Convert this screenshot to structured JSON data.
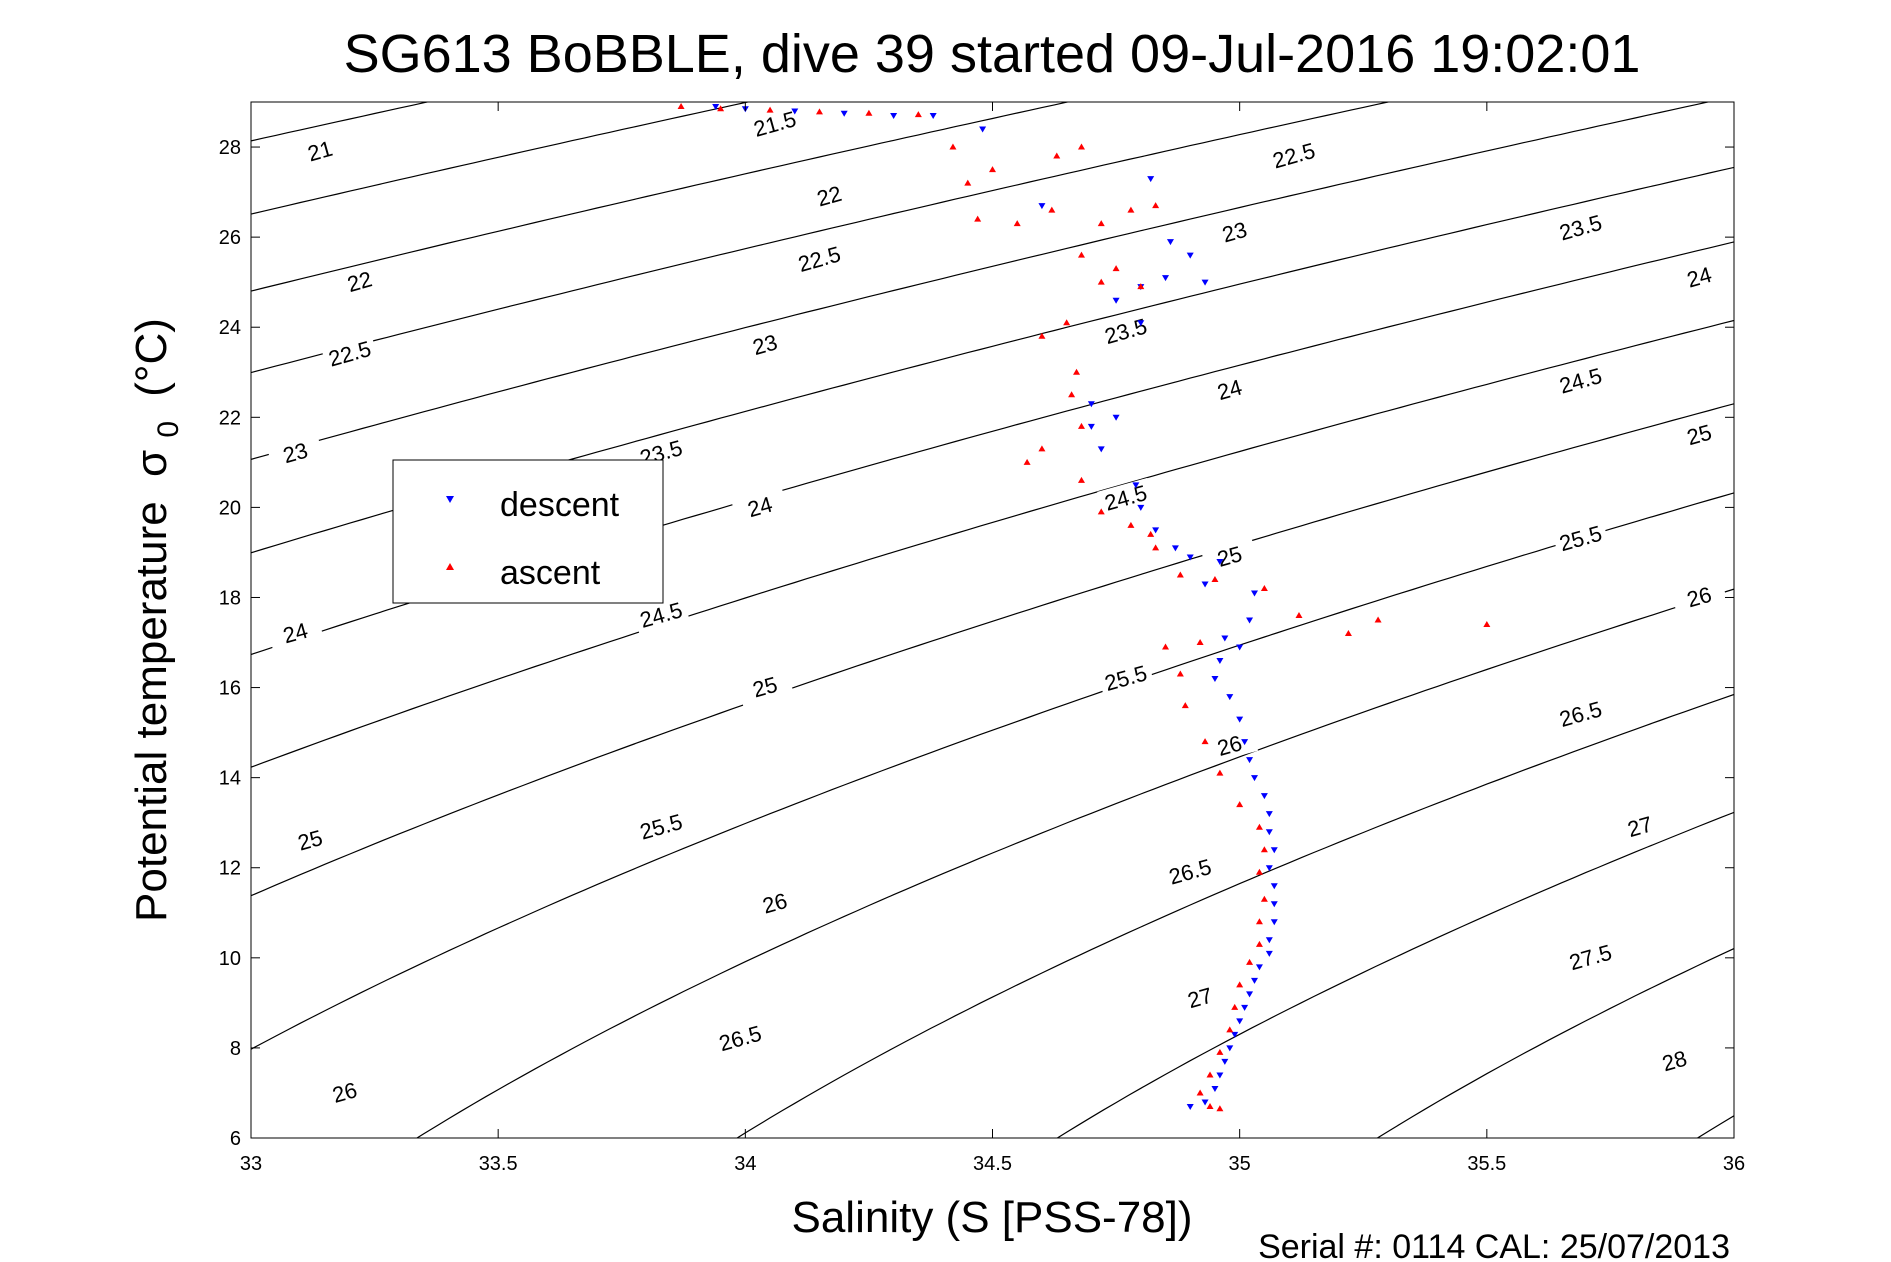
{
  "chart_data": {
    "type": "scatter",
    "title": "SG613 BoBBLE, dive 39 started 09-Jul-2016 19:02:01",
    "xlabel": "Salinity (S [PSS-78])",
    "ylabel": "Potential temperature",
    "ylabel_symbol": "σ",
    "ylabel_subscript": "0",
    "ylabel_unit": "(°C)",
    "xlim": [
      33,
      36
    ],
    "ylim": [
      6,
      29
    ],
    "xticks": [
      "33",
      "33.5",
      "34",
      "34.5",
      "35",
      "35.5",
      "36"
    ],
    "yticks": [
      "6",
      "8",
      "10",
      "12",
      "14",
      "16",
      "18",
      "20",
      "22",
      "24",
      "26",
      "28"
    ],
    "grid": false,
    "legend_position": "center-left",
    "footer": "Serial #: 0114  CAL: 25/07/2013",
    "density_contours": {
      "levels": [
        21,
        21.5,
        22,
        22.5,
        23,
        23.5,
        24,
        24.5,
        25,
        25.5,
        26,
        26.5,
        27,
        27.5,
        28
      ],
      "color": "#000000",
      "labels": [
        {
          "text": "21",
          "s": 33.14,
          "t": 27.9
        },
        {
          "text": "21.5",
          "s": 34.06,
          "t": 28.5
        },
        {
          "text": "22",
          "s": 34.17,
          "t": 26.9
        },
        {
          "text": "22.5",
          "s": 35.11,
          "t": 27.8
        },
        {
          "text": "22",
          "s": 33.22,
          "t": 25.0
        },
        {
          "text": "22.5",
          "s": 34.15,
          "t": 25.5
        },
        {
          "text": "23",
          "s": 34.99,
          "t": 26.1
        },
        {
          "text": "23.5",
          "s": 35.69,
          "t": 26.2
        },
        {
          "text": "24",
          "s": 35.93,
          "t": 25.1
        },
        {
          "text": "22.5",
          "s": 33.2,
          "t": 23.4
        },
        {
          "text": "23",
          "s": 34.04,
          "t": 23.6
        },
        {
          "text": "23.5",
          "s": 34.77,
          "t": 23.9
        },
        {
          "text": "24",
          "s": 34.98,
          "t": 22.6
        },
        {
          "text": "24.5",
          "s": 35.69,
          "t": 22.8
        },
        {
          "text": "25",
          "s": 35.93,
          "t": 21.6
        },
        {
          "text": "23",
          "s": 33.09,
          "t": 21.2
        },
        {
          "text": "23.5",
          "s": 33.83,
          "t": 21.2
        },
        {
          "text": "24",
          "s": 34.03,
          "t": 20.0
        },
        {
          "text": "24.5",
          "s": 34.77,
          "t": 20.2
        },
        {
          "text": "25",
          "s": 34.98,
          "t": 18.9
        },
        {
          "text": "25.5",
          "s": 35.69,
          "t": 19.3
        },
        {
          "text": "26",
          "s": 35.93,
          "t": 18.0
        },
        {
          "text": "24",
          "s": 33.09,
          "t": 17.2
        },
        {
          "text": "24.5",
          "s": 33.83,
          "t": 17.6
        },
        {
          "text": "25",
          "s": 34.04,
          "t": 16.0
        },
        {
          "text": "25.5",
          "s": 34.77,
          "t": 16.2
        },
        {
          "text": "26",
          "s": 34.98,
          "t": 14.7
        },
        {
          "text": "26.5",
          "s": 35.69,
          "t": 15.4
        },
        {
          "text": "25",
          "s": 33.12,
          "t": 12.6
        },
        {
          "text": "25.5",
          "s": 33.83,
          "t": 12.9
        },
        {
          "text": "26",
          "s": 34.06,
          "t": 11.2
        },
        {
          "text": "26.5",
          "s": 34.9,
          "t": 11.9
        },
        {
          "text": "27",
          "s": 35.81,
          "t": 12.9
        },
        {
          "text": "27",
          "s": 34.92,
          "t": 9.1
        },
        {
          "text": "27.5",
          "s": 35.71,
          "t": 10.0
        },
        {
          "text": "26",
          "s": 33.19,
          "t": 7.0
        },
        {
          "text": "26.5",
          "s": 33.99,
          "t": 8.2
        },
        {
          "text": "28",
          "s": 35.88,
          "t": 7.7
        }
      ]
    },
    "series": [
      {
        "name": "descent",
        "color": "#0000ff",
        "marker": "triangle-down",
        "points": [
          [
            33.94,
            28.9
          ],
          [
            34.0,
            28.85
          ],
          [
            34.1,
            28.8
          ],
          [
            34.2,
            28.75
          ],
          [
            34.3,
            28.7
          ],
          [
            34.38,
            28.7
          ],
          [
            34.48,
            28.4
          ],
          [
            34.82,
            27.3
          ],
          [
            34.6,
            26.7
          ],
          [
            34.86,
            25.9
          ],
          [
            34.9,
            25.6
          ],
          [
            34.85,
            25.1
          ],
          [
            34.8,
            24.9
          ],
          [
            34.93,
            25.0
          ],
          [
            34.75,
            24.6
          ],
          [
            34.8,
            24.1
          ],
          [
            34.7,
            22.3
          ],
          [
            34.75,
            22.0
          ],
          [
            34.7,
            21.8
          ],
          [
            34.72,
            21.3
          ],
          [
            34.79,
            20.5
          ],
          [
            34.8,
            20.0
          ],
          [
            34.83,
            19.5
          ],
          [
            34.87,
            19.1
          ],
          [
            34.9,
            18.9
          ],
          [
            34.96,
            18.8
          ],
          [
            34.93,
            18.3
          ],
          [
            35.03,
            18.1
          ],
          [
            35.02,
            17.5
          ],
          [
            34.97,
            17.1
          ],
          [
            35.0,
            16.9
          ],
          [
            34.96,
            16.6
          ],
          [
            34.95,
            16.2
          ],
          [
            34.98,
            15.8
          ],
          [
            35.0,
            15.3
          ],
          [
            35.01,
            14.8
          ],
          [
            35.02,
            14.4
          ],
          [
            35.03,
            14.0
          ],
          [
            35.05,
            13.6
          ],
          [
            35.06,
            13.2
          ],
          [
            35.06,
            12.8
          ],
          [
            35.07,
            12.4
          ],
          [
            35.06,
            12.0
          ],
          [
            35.07,
            11.6
          ],
          [
            35.07,
            11.2
          ],
          [
            35.07,
            10.8
          ],
          [
            35.06,
            10.4
          ],
          [
            35.06,
            10.1
          ],
          [
            35.04,
            9.8
          ],
          [
            35.03,
            9.5
          ],
          [
            35.02,
            9.2
          ],
          [
            35.01,
            8.9
          ],
          [
            35.0,
            8.6
          ],
          [
            34.99,
            8.3
          ],
          [
            34.98,
            8.0
          ],
          [
            34.97,
            7.7
          ],
          [
            34.96,
            7.4
          ],
          [
            34.95,
            7.1
          ],
          [
            34.93,
            6.8
          ],
          [
            34.9,
            6.7
          ]
        ]
      },
      {
        "name": "ascent",
        "color": "#ff0000",
        "marker": "triangle-up",
        "points": [
          [
            33.87,
            28.9
          ],
          [
            33.95,
            28.85
          ],
          [
            34.05,
            28.82
          ],
          [
            34.15,
            28.78
          ],
          [
            34.25,
            28.75
          ],
          [
            34.35,
            28.72
          ],
          [
            34.42,
            28.0
          ],
          [
            34.5,
            27.5
          ],
          [
            34.63,
            27.8
          ],
          [
            34.68,
            28.0
          ],
          [
            34.45,
            27.2
          ],
          [
            34.47,
            26.4
          ],
          [
            34.55,
            26.3
          ],
          [
            34.62,
            26.6
          ],
          [
            34.72,
            26.3
          ],
          [
            34.78,
            26.6
          ],
          [
            34.83,
            26.7
          ],
          [
            34.68,
            25.6
          ],
          [
            34.75,
            25.3
          ],
          [
            34.72,
            25.0
          ],
          [
            34.8,
            24.9
          ],
          [
            34.65,
            24.1
          ],
          [
            34.6,
            23.8
          ],
          [
            34.67,
            23.0
          ],
          [
            34.66,
            22.5
          ],
          [
            34.68,
            21.8
          ],
          [
            34.6,
            21.3
          ],
          [
            34.57,
            21.0
          ],
          [
            34.68,
            20.6
          ],
          [
            34.72,
            19.9
          ],
          [
            34.78,
            19.6
          ],
          [
            34.82,
            19.4
          ],
          [
            34.83,
            19.1
          ],
          [
            34.88,
            18.5
          ],
          [
            34.95,
            18.4
          ],
          [
            35.05,
            18.2
          ],
          [
            35.12,
            17.6
          ],
          [
            35.22,
            17.2
          ],
          [
            35.28,
            17.5
          ],
          [
            35.5,
            17.4
          ],
          [
            34.85,
            16.9
          ],
          [
            34.92,
            17.0
          ],
          [
            34.88,
            16.3
          ],
          [
            34.89,
            15.6
          ],
          [
            34.93,
            14.8
          ],
          [
            34.96,
            14.1
          ],
          [
            35.0,
            13.4
          ],
          [
            35.04,
            12.9
          ],
          [
            35.05,
            12.4
          ],
          [
            35.04,
            11.9
          ],
          [
            35.05,
            11.3
          ],
          [
            35.04,
            10.8
          ],
          [
            35.04,
            10.3
          ],
          [
            35.02,
            9.9
          ],
          [
            35.0,
            9.4
          ],
          [
            34.99,
            8.9
          ],
          [
            34.98,
            8.4
          ],
          [
            34.96,
            7.9
          ],
          [
            34.94,
            7.4
          ],
          [
            34.92,
            7.0
          ],
          [
            34.94,
            6.7
          ],
          [
            34.96,
            6.65
          ]
        ]
      }
    ]
  }
}
